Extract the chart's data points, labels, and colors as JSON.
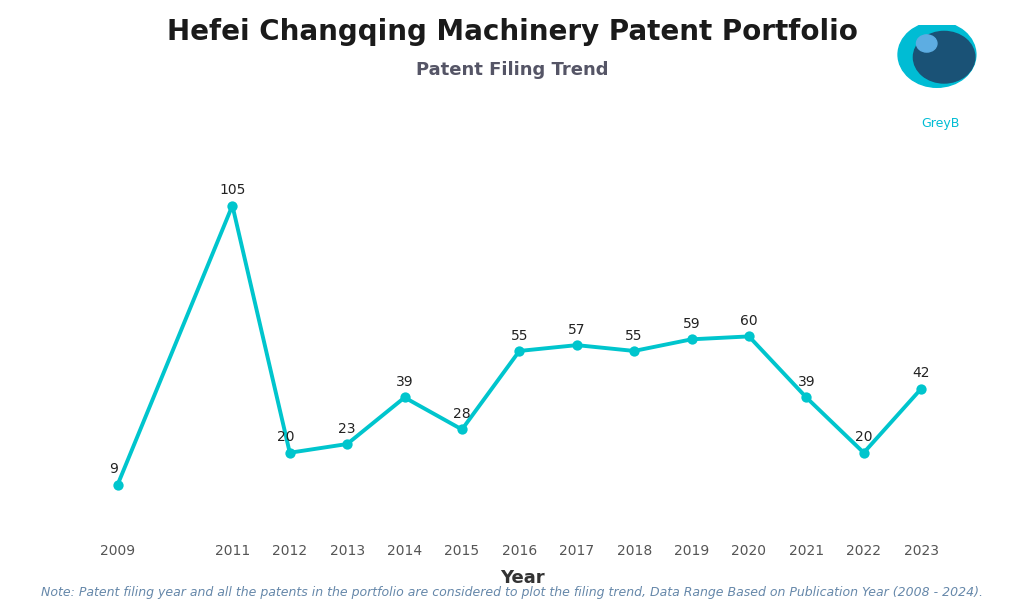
{
  "title": "Hefei Changqing Machinery Patent Portfolio",
  "subtitle": "Patent Filing Trend",
  "xlabel": "Year",
  "years": [
    2009,
    2011,
    2012,
    2013,
    2014,
    2015,
    2016,
    2017,
    2018,
    2019,
    2020,
    2021,
    2022,
    2023
  ],
  "values": [
    9,
    105,
    20,
    23,
    39,
    28,
    55,
    57,
    55,
    59,
    60,
    39,
    20,
    42
  ],
  "line_color": "#00C5CD",
  "bg_color": "#FFFFFF",
  "note": "Note: Patent filing year and all the patents in the portfolio are considered to plot the filing trend, Data Range Based on Publication Year (2008 - 2024).",
  "title_fontsize": 20,
  "subtitle_fontsize": 13,
  "label_fontsize": 10,
  "note_fontsize": 9,
  "xlabel_fontsize": 13,
  "tick_fontsize": 10,
  "ylim": [
    -8,
    125
  ],
  "xlim": [
    2008.2,
    2023.9
  ]
}
